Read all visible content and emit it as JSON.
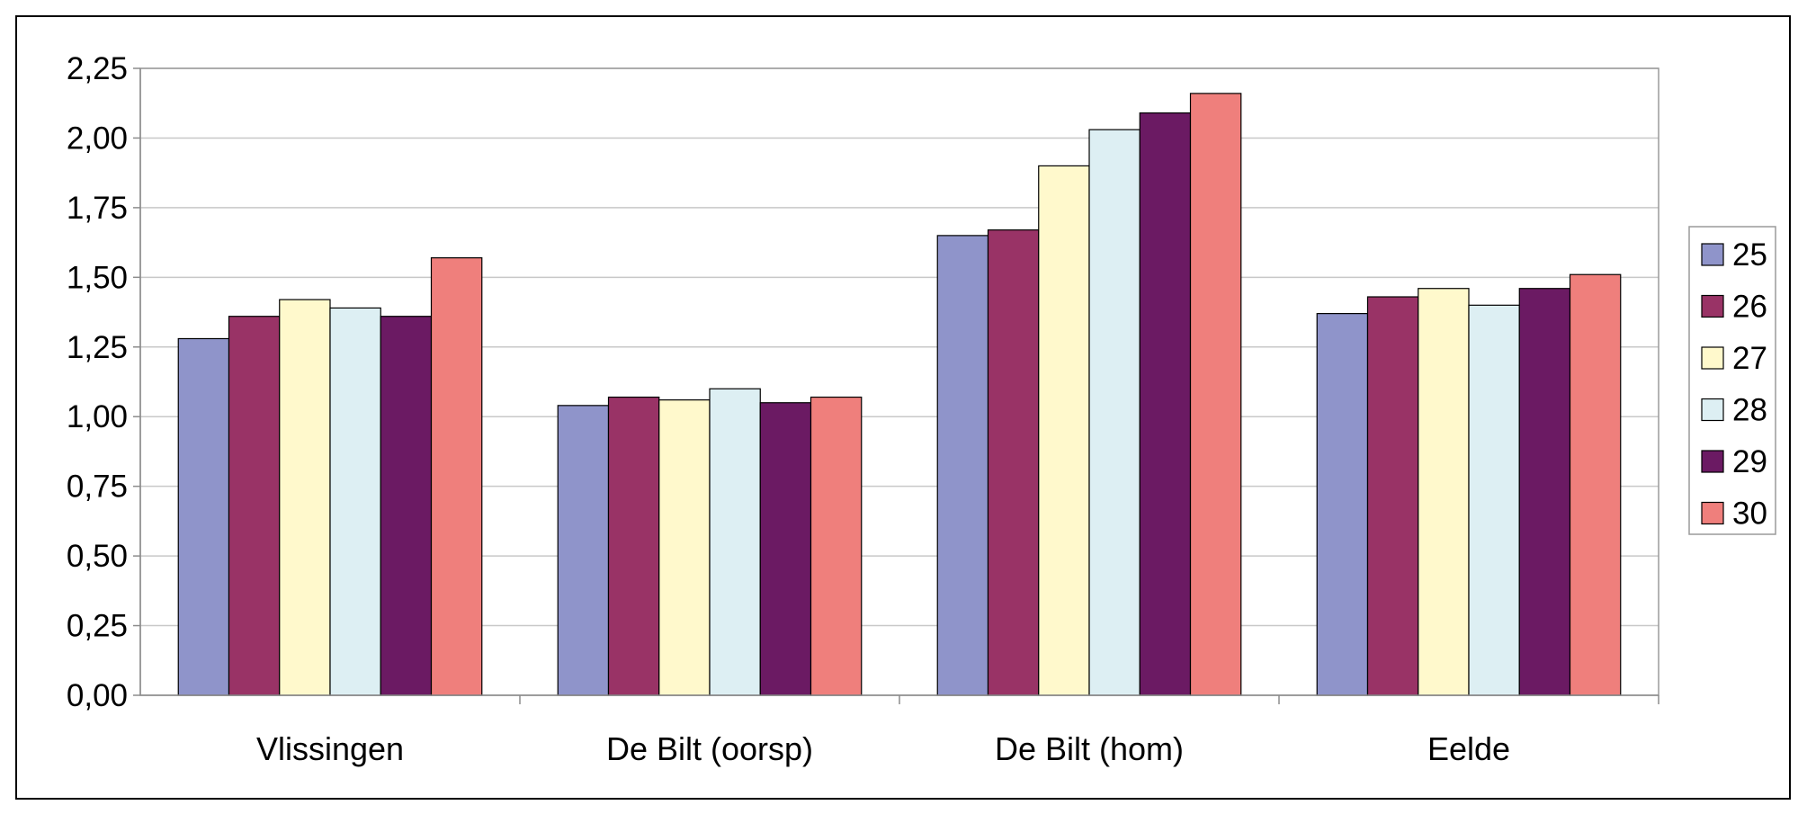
{
  "chart_data": {
    "type": "bar",
    "categories": [
      "Vlissingen",
      "De Bilt (oorsp)",
      "De Bilt (hom)",
      "Eelde"
    ],
    "series": [
      {
        "name": "25",
        "color": "#8F94CA",
        "values": [
          1.28,
          1.04,
          1.65,
          1.37
        ]
      },
      {
        "name": "26",
        "color": "#993366",
        "values": [
          1.36,
          1.07,
          1.67,
          1.43
        ]
      },
      {
        "name": "27",
        "color": "#FFF9CC",
        "values": [
          1.42,
          1.06,
          1.9,
          1.46
        ]
      },
      {
        "name": "28",
        "color": "#DDEFF3",
        "values": [
          1.39,
          1.1,
          2.03,
          1.4
        ]
      },
      {
        "name": "29",
        "color": "#6B1A63",
        "values": [
          1.36,
          1.05,
          2.09,
          1.46
        ]
      },
      {
        "name": "30",
        "color": "#EF7F7C",
        "values": [
          1.57,
          1.07,
          2.16,
          1.51
        ]
      }
    ],
    "yticks": [
      "0,00",
      "0,25",
      "0,50",
      "0,75",
      "1,00",
      "1,25",
      "1,50",
      "1,75",
      "2,00",
      "2,25"
    ],
    "ylim": [
      0,
      2.25
    ],
    "grid": true,
    "legend": "right",
    "title": "",
    "xlabel": "",
    "ylabel": ""
  }
}
